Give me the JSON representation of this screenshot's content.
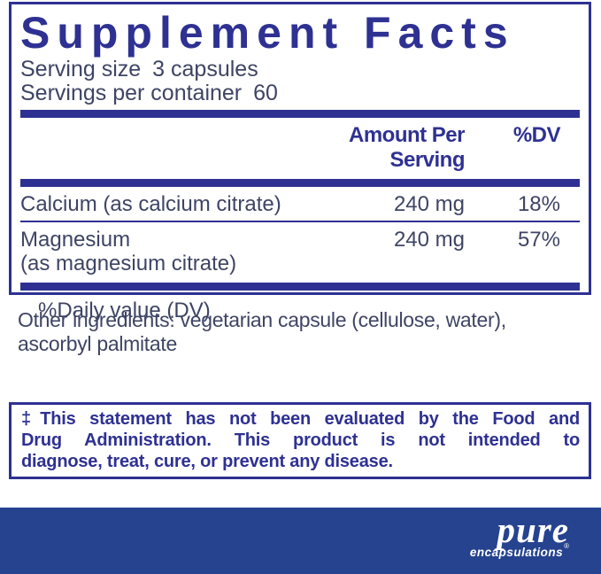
{
  "label": {
    "title": "Supplement Facts",
    "serving": [
      {
        "label": "Serving size",
        "value": "3 capsules"
      },
      {
        "label": "Servings per container",
        "value": "60"
      }
    ],
    "columns": {
      "amount": "Amount Per Serving",
      "dv": "%DV"
    },
    "nutrients": [
      {
        "name": "Calcium (as calcium citrate)",
        "name2": "",
        "amount": "240 mg",
        "dv": "18%"
      },
      {
        "name": "Magnesium",
        "name2": "(as magnesium citrate)",
        "amount": "240 mg",
        "dv": "57%"
      }
    ],
    "footnote": "%Daily value (DV)"
  },
  "other_ingredients": {
    "line1": "Other ingredients: vegetarian capsule (cellulose, water),",
    "line2": "ascorbyl palmitate"
  },
  "disclaimer": {
    "line1": "‡This statement has not been evaluated by the Food and",
    "line2": "Drug Administration. This product is not intended to",
    "line3": "diagnose, treat, cure, or prevent any disease."
  },
  "brand": {
    "name": "pure",
    "sub": "encapsulations",
    "registered": "®"
  },
  "colors": {
    "navy": "#2e3192",
    "body_text": "#3e4464",
    "footer_blue": "#26438f",
    "background": "#ffffff"
  }
}
